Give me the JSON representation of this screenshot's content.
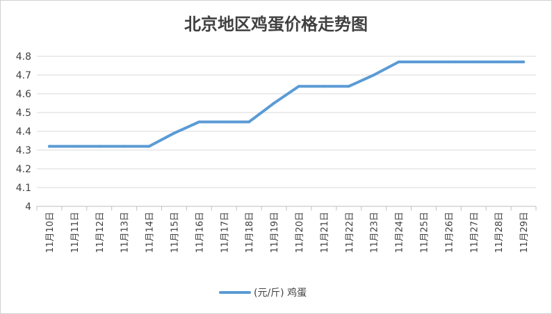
{
  "chart_data": {
    "type": "line",
    "title": "北京地区鸡蛋价格走势图",
    "categories": [
      "11月10日",
      "11月11日",
      "11月12日",
      "11月13日",
      "11月14日",
      "11月15日",
      "11月16日",
      "11月17日",
      "11月18日",
      "11月19日",
      "11月20日",
      "11月21日",
      "11月22日",
      "11月23日",
      "11月24日",
      "11月25日",
      "11月26日",
      "11月27日",
      "11月28日",
      "11月29日"
    ],
    "series": [
      {
        "name": "(元/斤) 鸡蛋",
        "color": "#5b9bd5",
        "values": [
          4.32,
          4.32,
          4.32,
          4.32,
          4.32,
          4.39,
          4.45,
          4.45,
          4.45,
          4.55,
          4.64,
          4.64,
          4.64,
          4.7,
          4.77,
          4.77,
          4.77,
          4.77,
          4.77,
          4.77
        ]
      }
    ],
    "ylim": [
      4,
      4.8
    ],
    "yticks": [
      "4",
      "4.1",
      "4.2",
      "4.3",
      "4.4",
      "4.5",
      "4.6",
      "4.7",
      "4.8"
    ],
    "grid": true,
    "legend": "bottom"
  }
}
